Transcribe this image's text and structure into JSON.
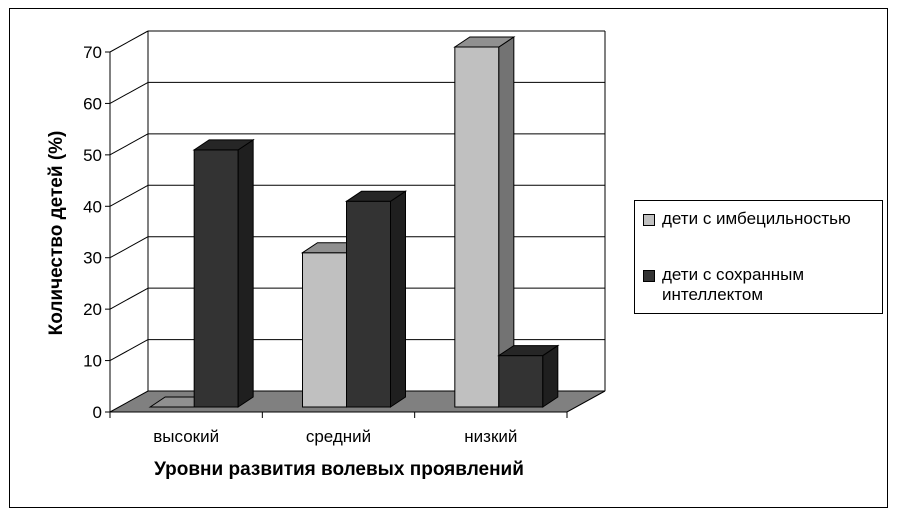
{
  "chart_data": {
    "type": "bar",
    "subtype": "3d-clustered-column",
    "categories": [
      "высокий",
      "средний",
      "низкий"
    ],
    "series": [
      {
        "name": "дети с имбецильностью",
        "values": [
          0,
          30,
          70
        ],
        "color": "#c0c0c0"
      },
      {
        "name": "дети с сохранным интеллектом",
        "values": [
          50,
          40,
          10
        ],
        "color": "#333333"
      }
    ],
    "xlabel": "Уровни развития волевых проявлений",
    "ylabel": "Количество детей (%)",
    "ylim": [
      0,
      70
    ],
    "yticks": [
      "0",
      "10",
      "20",
      "30",
      "40",
      "50",
      "60",
      "70"
    ],
    "grid": true,
    "legend_position": "right",
    "wall_color": "#ffffff",
    "floor_color": "#808080"
  }
}
